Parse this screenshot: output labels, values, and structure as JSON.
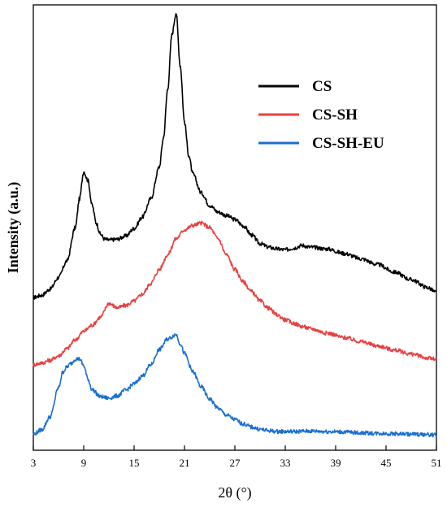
{
  "chart_data": {
    "type": "line",
    "title": "",
    "xlabel": "2θ (°)",
    "ylabel": "Intensity (a.u.)",
    "xlim": [
      3,
      51
    ],
    "ylim": [
      0,
      100
    ],
    "xticks": [
      "3",
      "9",
      "15",
      "21",
      "27",
      "33",
      "39",
      "45",
      "51"
    ],
    "yticks_shown": false,
    "legend_placement": "top-right",
    "series": [
      {
        "name": "CS",
        "color": "#000000",
        "x": [
          3,
          4,
          5,
          6,
          7,
          8,
          8.5,
          9,
          9.5,
          10,
          10.5,
          11,
          11.5,
          12,
          13,
          14,
          15,
          16,
          17,
          18,
          18.5,
          19,
          19.5,
          20,
          20.5,
          21,
          21.5,
          22,
          23,
          24,
          25,
          26,
          27,
          28,
          29,
          30,
          31,
          32,
          33,
          34,
          35,
          36,
          38,
          40,
          42,
          44,
          46,
          48,
          50,
          51
        ],
        "y": [
          34.3,
          34.8,
          36.2,
          38.8,
          42.5,
          50.0,
          56.5,
          62.6,
          60.6,
          55.0,
          51.0,
          48.5,
          47.4,
          47.2,
          47.4,
          48.1,
          49.8,
          52.4,
          56.5,
          63.6,
          70.2,
          81.1,
          93.3,
          98.2,
          86.3,
          73.7,
          66.3,
          62.0,
          57.8,
          55.0,
          53.5,
          52.7,
          51.8,
          50.4,
          48.3,
          46.4,
          45.6,
          45.2,
          45.0,
          45.4,
          46.0,
          45.6,
          45.2,
          44.2,
          43.0,
          41.7,
          40.0,
          38.3,
          36.5,
          35.4
        ]
      },
      {
        "name": "CS-SH",
        "color": "#e84040",
        "x": [
          3,
          4,
          5,
          6,
          7,
          8,
          9,
          10,
          11,
          12,
          13,
          14,
          15,
          16,
          17,
          18,
          19,
          20,
          21,
          22,
          23,
          24,
          25,
          26,
          27,
          28,
          29,
          30,
          31,
          32,
          33,
          34,
          35,
          36,
          38,
          40,
          42,
          44,
          46,
          48,
          50,
          51
        ],
        "y": [
          19.2,
          19.6,
          20.2,
          21.2,
          22.8,
          24.8,
          26.7,
          28.1,
          29.9,
          33.0,
          32.0,
          32.5,
          33.5,
          35.1,
          37.5,
          40.6,
          43.9,
          47.5,
          49.5,
          50.5,
          51.0,
          50.0,
          47.5,
          43.9,
          40.6,
          37.8,
          35.6,
          33.5,
          31.9,
          30.4,
          29.3,
          28.5,
          27.8,
          27.3,
          26.3,
          25.3,
          24.4,
          23.4,
          22.5,
          21.6,
          20.7,
          20.4
        ]
      },
      {
        "name": "CS-SH-EU",
        "color": "#1a6fd0",
        "x": [
          3,
          4,
          5,
          6,
          6.5,
          7,
          7.5,
          8,
          8.5,
          9,
          9.5,
          10,
          11,
          12,
          13,
          14,
          15,
          16,
          17,
          18,
          19,
          20,
          20.5,
          21,
          22,
          23,
          24,
          25,
          26,
          27,
          28,
          29,
          30,
          31,
          32,
          34,
          36,
          38,
          40,
          42,
          44,
          46,
          48,
          50,
          51
        ],
        "y": [
          3.6,
          4.6,
          7.5,
          14.0,
          17.5,
          18.7,
          19.5,
          20.5,
          20.5,
          19.0,
          16.0,
          13.6,
          12.0,
          11.7,
          12.2,
          13.5,
          14.9,
          16.7,
          19.2,
          22.6,
          25.0,
          26.0,
          23.9,
          21.7,
          17.6,
          14.2,
          11.5,
          9.4,
          7.9,
          6.9,
          5.9,
          5.2,
          4.7,
          4.4,
          4.2,
          4.2,
          4.3,
          4.2,
          4.1,
          3.9,
          3.8,
          3.7,
          3.6,
          3.5,
          3.4
        ]
      }
    ]
  }
}
